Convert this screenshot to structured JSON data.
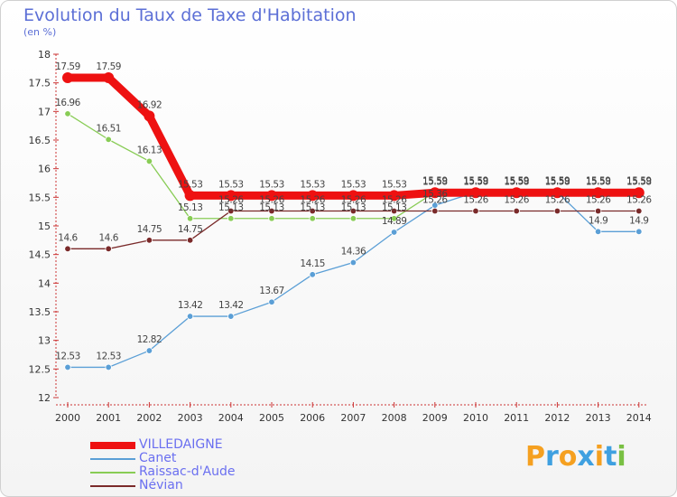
{
  "header": {
    "title": "Evolution du Taux de Taxe d'Habitation",
    "subtitle": "(en %)"
  },
  "logo": {
    "text": "Proxiti",
    "colors": [
      "#f5a020",
      "#3fa0e0",
      "#f5a020",
      "#3fa0e0",
      "#f5a020",
      "#3fa0e0",
      "#79c043"
    ]
  },
  "chart_data": {
    "type": "line",
    "title": "Evolution du Taux de Taxe d'Habitation",
    "ylabel": "(en %)",
    "xlabel": "",
    "x": [
      "2000",
      "2001",
      "2002",
      "2003",
      "2004",
      "2005",
      "2006",
      "2007",
      "2008",
      "2009",
      "2010",
      "2011",
      "2012",
      "2013",
      "2014"
    ],
    "ylim": [
      12,
      18
    ],
    "yticks": [
      "12",
      "12.5",
      "13",
      "13.5",
      "14",
      "14.5",
      "15",
      "15.5",
      "16",
      "16.5",
      "17",
      "17.5",
      "18"
    ],
    "grid": false,
    "legend_position": "bottom-left",
    "series": [
      {
        "name": "VILLEDAIGNE",
        "color": "#ee1111",
        "values": [
          17.59,
          17.59,
          16.92,
          15.53,
          15.53,
          15.53,
          15.53,
          15.53,
          15.53,
          15.58,
          15.58,
          15.58,
          15.58,
          15.58,
          15.58
        ],
        "labels": [
          "17.59",
          "17.59",
          "16.92",
          "15.53",
          "15.53",
          "15.53",
          "15.53",
          "15.53",
          "15.53",
          "15.58",
          "15.58",
          "15.58",
          "15.58",
          "15.58",
          "15.58"
        ]
      },
      {
        "name": "Canet",
        "color": "#5b9fd6",
        "values": [
          12.53,
          12.53,
          12.82,
          13.42,
          13.42,
          13.67,
          14.15,
          14.36,
          14.89,
          15.36,
          15.59,
          15.59,
          15.59,
          14.9,
          14.9
        ],
        "labels": [
          "12.53",
          "12.53",
          "12.82",
          "13.42",
          "13.42",
          "13.67",
          "14.15",
          "14.36",
          "14.89",
          "15.36",
          "15.59",
          "15.59",
          "15.59",
          "14.9",
          "14.9"
        ]
      },
      {
        "name": "Raissac-d'Aude",
        "color": "#88cc55",
        "values": [
          16.96,
          16.51,
          16.13,
          15.13,
          15.13,
          15.13,
          15.13,
          15.13,
          15.13,
          15.59,
          15.59,
          15.59,
          15.59,
          15.59,
          15.59
        ],
        "labels": [
          "16.96",
          "16.51",
          "16.13",
          "15.13",
          "15.13",
          "15.13",
          "15.13",
          "15.13",
          "15.13",
          "15.59",
          "15.59",
          "15.59",
          "15.59",
          "15.59",
          "15.59"
        ]
      },
      {
        "name": "Névian",
        "color": "#7a2a2a",
        "values": [
          14.6,
          14.6,
          14.75,
          14.75,
          15.26,
          15.26,
          15.26,
          15.26,
          15.26,
          15.26,
          15.26,
          15.26,
          15.26,
          15.26,
          15.26
        ],
        "labels": [
          "14.6",
          "14.6",
          "14.75",
          "14.75",
          "15.26",
          "15.26",
          "15.26",
          "15.26",
          "15.26",
          "15.26",
          "15.26",
          "15.26",
          "15.26",
          "15.26",
          "15.26"
        ]
      }
    ]
  }
}
